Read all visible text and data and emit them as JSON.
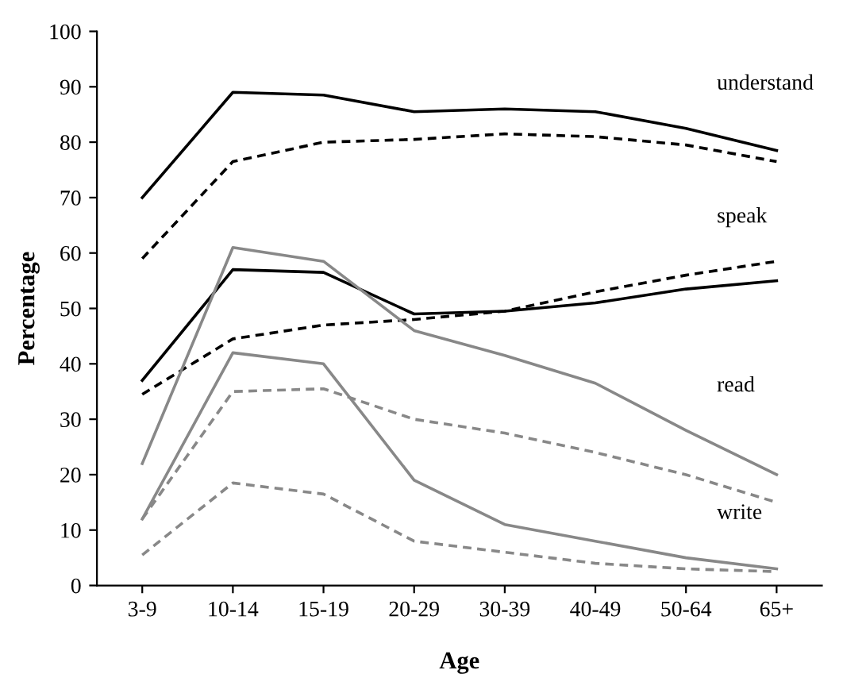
{
  "chart_data": {
    "type": "line",
    "xlabel": "Age",
    "ylabel": "Percentage",
    "categories": [
      "3-9",
      "10-14",
      "15-19",
      "20-29",
      "30-39",
      "40-49",
      "50-64",
      "65+"
    ],
    "ylim": [
      0,
      100
    ],
    "yticks": [
      0,
      10,
      20,
      30,
      40,
      50,
      60,
      70,
      80,
      90,
      100
    ],
    "grid": false,
    "legend": false,
    "marker": "none",
    "series": [
      {
        "color": "#000000",
        "line_style": "solid",
        "values": [
          70,
          89,
          88.5,
          85.5,
          86,
          85.5,
          82.5,
          78.5
        ]
      },
      {
        "color": "#000000",
        "line_style": "dashed",
        "values": [
          59,
          76.5,
          80,
          80.5,
          81.5,
          81,
          79.5,
          76.5
        ]
      },
      {
        "color": "#000000",
        "line_style": "solid",
        "values": [
          37,
          57,
          56.5,
          49,
          49.5,
          51,
          53.5,
          55
        ]
      },
      {
        "color": "#000000",
        "line_style": "dashed",
        "values": [
          34.5,
          44.5,
          47,
          48,
          49.5,
          53,
          56,
          58.5
        ]
      },
      {
        "color": "#888888",
        "line_style": "solid",
        "values": [
          22,
          61,
          58.5,
          46,
          41.5,
          36.5,
          28,
          20
        ]
      },
      {
        "color": "#888888",
        "line_style": "dashed",
        "values": [
          12,
          35,
          35.5,
          30,
          27.5,
          24,
          20,
          15
        ]
      },
      {
        "color": "#888888",
        "line_style": "solid",
        "values": [
          12,
          42,
          40,
          19,
          11,
          8,
          5,
          3
        ]
      },
      {
        "color": "#888888",
        "line_style": "dashed",
        "values": [
          5.5,
          18.5,
          16.5,
          8,
          6,
          4,
          3,
          2.5
        ]
      }
    ],
    "annotations": [
      "understand",
      "speak",
      "read",
      "write"
    ]
  }
}
